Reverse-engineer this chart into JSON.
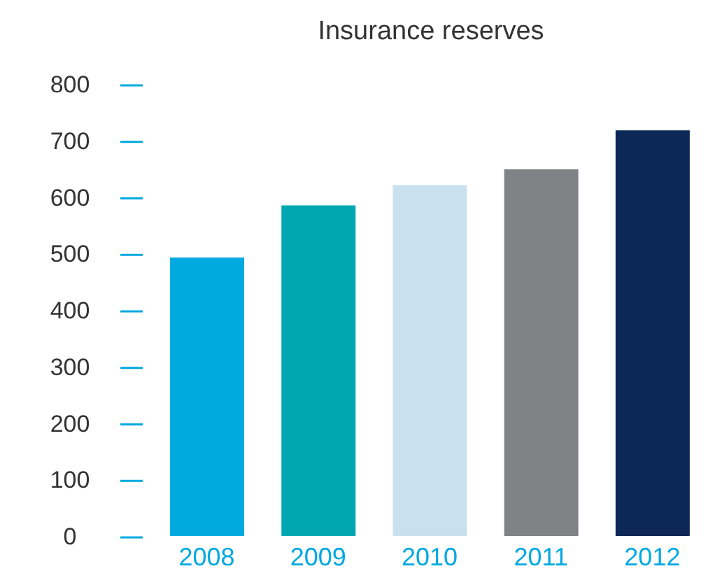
{
  "chart_data": {
    "type": "bar",
    "title": "Insurance reserves",
    "categories": [
      "2008",
      "2009",
      "2010",
      "2011",
      "2012"
    ],
    "values": [
      493,
      585,
      621,
      649,
      718
    ],
    "colors": [
      "#00a9e0",
      "#00a7b0",
      "#c9e1ee",
      "#808285",
      "#0b2856"
    ],
    "ylim": [
      0,
      800
    ],
    "yticks": [
      0,
      100,
      200,
      300,
      400,
      500,
      600,
      700,
      800
    ],
    "grid": false,
    "legend": false
  }
}
